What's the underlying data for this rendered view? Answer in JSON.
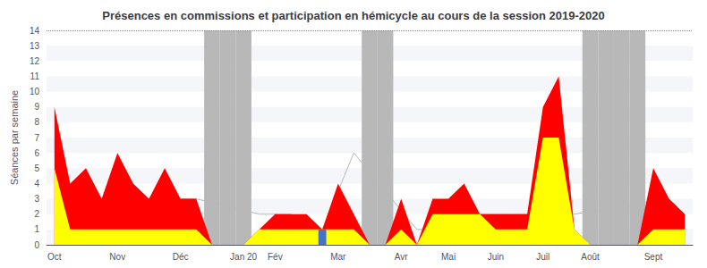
{
  "chart_data": {
    "type": "area",
    "title": "Présences en commissions et participation en hémicycle au cours de la session 2019-2020",
    "ylabel": "Séances par semaine",
    "categories": [
      "Oct",
      null,
      null,
      null,
      "Nov",
      null,
      null,
      null,
      "Déc",
      null,
      null,
      null,
      "Jan 20",
      null,
      "Fév",
      null,
      null,
      null,
      "Mar",
      null,
      null,
      null,
      "Avr",
      null,
      null,
      "Mai",
      null,
      null,
      "Juin",
      null,
      null,
      "Juil",
      null,
      null,
      "Août",
      null,
      null,
      null,
      "Sept",
      null,
      null
    ],
    "series": [
      {
        "type": "line",
        "color": "#b8b8b8",
        "values": [
          null,
          3,
          null,
          2,
          null,
          3,
          null,
          3,
          null,
          3,
          null,
          null,
          null,
          2,
          null,
          2,
          null,
          1,
          null,
          6,
          null,
          null,
          null,
          1,
          null,
          1,
          null,
          2,
          null,
          2,
          null,
          2,
          null,
          2,
          null,
          null,
          null,
          null,
          null,
          3,
          null
        ]
      },
      {
        "type": "area",
        "color": "#ff0000",
        "values": [
          9,
          4,
          5,
          3,
          6,
          4,
          3,
          5,
          3,
          3,
          0,
          0,
          0,
          1,
          2,
          2,
          2,
          1,
          4,
          2,
          0,
          0,
          3,
          0,
          3,
          3,
          4,
          2,
          2,
          2,
          2,
          9,
          11,
          1,
          0,
          0,
          0,
          0,
          5,
          3,
          2
        ]
      },
      {
        "type": "area",
        "color": "#ffff00",
        "values": [
          5,
          1,
          1,
          1,
          1,
          1,
          1,
          1,
          1,
          1,
          0,
          0,
          0,
          1,
          1,
          1,
          1,
          1,
          1,
          1,
          0,
          0,
          1,
          0,
          2,
          2,
          2,
          2,
          1,
          1,
          1,
          7,
          7,
          1,
          0,
          0,
          0,
          0,
          1,
          1,
          1
        ]
      },
      {
        "type": "bar",
        "color": "#4472c4",
        "values": [
          null,
          null,
          null,
          null,
          null,
          null,
          null,
          null,
          null,
          null,
          null,
          null,
          null,
          null,
          null,
          null,
          null,
          1,
          null,
          null,
          null,
          null,
          null,
          null,
          null,
          null,
          null,
          null,
          null,
          null,
          null,
          null,
          null,
          null,
          null,
          null,
          null,
          null,
          null,
          null,
          null
        ]
      }
    ],
    "vacation": {
      "color": "#b8b8b8",
      "values": [
        false,
        false,
        false,
        false,
        false,
        false,
        false,
        false,
        false,
        false,
        true,
        true,
        true,
        false,
        false,
        false,
        false,
        false,
        false,
        false,
        true,
        true,
        false,
        false,
        false,
        false,
        false,
        false,
        false,
        false,
        false,
        false,
        false,
        false,
        true,
        true,
        true,
        true,
        false,
        false,
        false
      ]
    },
    "ylim": [
      0,
      14
    ],
    "yticks": [
      0,
      1,
      2,
      3,
      4,
      5,
      6,
      7,
      8,
      9,
      10,
      11,
      12,
      13,
      14
    ],
    "grid": false
  }
}
